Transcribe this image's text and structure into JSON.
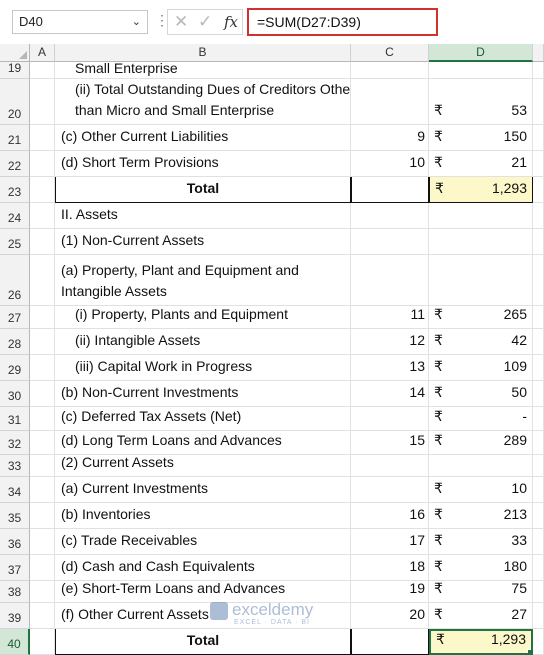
{
  "name_box": {
    "value": "D40"
  },
  "formula_bar": {
    "formula": "=SUM(D27:D39)",
    "cancel_icon": "x-icon",
    "enter_icon": "check-icon",
    "function_label": "fx"
  },
  "columns": [
    "A",
    "B",
    "C",
    "D"
  ],
  "selected_column": "D",
  "currency_symbol": "₹",
  "rows": [
    {
      "num": "19",
      "b": "Small Enterprise",
      "c": "",
      "rs": "",
      "d": ""
    },
    {
      "num": "20",
      "b": "(ii) Total Outstanding Dues of Creditors Other than Micro and Small Enterprise",
      "c": "",
      "rs": "₹",
      "d": "53"
    },
    {
      "num": "21",
      "b": "(c) Other Current Liabilities",
      "c": "9",
      "rs": "₹",
      "d": "150"
    },
    {
      "num": "22",
      "b": "(d) Short Term Provisions",
      "c": "10",
      "rs": "₹",
      "d": "21"
    },
    {
      "num": "23",
      "b": "Total",
      "c": "",
      "rs": "₹",
      "d": "1,293"
    },
    {
      "num": "24",
      "b": "II. Assets",
      "c": "",
      "rs": "",
      "d": ""
    },
    {
      "num": "25",
      "b": "(1) Non-Current Assets",
      "c": "",
      "rs": "",
      "d": ""
    },
    {
      "num": "26",
      "b": "(a) Property, Plant and Equipment and Intangible Assets",
      "c": "",
      "rs": "",
      "d": ""
    },
    {
      "num": "27",
      "b": "(i) Property, Plants and Equipment",
      "c": "11",
      "rs": "₹",
      "d": "265"
    },
    {
      "num": "28",
      "b": "(ii) Intangible Assets",
      "c": "12",
      "rs": "₹",
      "d": "42"
    },
    {
      "num": "29",
      "b": "(iii) Capital Work in Progress",
      "c": "13",
      "rs": "₹",
      "d": "109"
    },
    {
      "num": "30",
      "b": "(b) Non-Current Investments",
      "c": "14",
      "rs": "₹",
      "d": "50"
    },
    {
      "num": "31",
      "b": "(c) Deferred Tax Assets (Net)",
      "c": "",
      "rs": "₹",
      "d": "-"
    },
    {
      "num": "32",
      "b": "(d) Long Term Loans and Advances",
      "c": "15",
      "rs": "₹",
      "d": "289"
    },
    {
      "num": "33",
      "b": "(2) Current Assets",
      "c": "",
      "rs": "",
      "d": ""
    },
    {
      "num": "34",
      "b": "(a) Current Investments",
      "c": "",
      "rs": "₹",
      "d": "10"
    },
    {
      "num": "35",
      "b": "(b) Inventories",
      "c": "16",
      "rs": "₹",
      "d": "213"
    },
    {
      "num": "36",
      "b": "(c) Trade Receivables",
      "c": "17",
      "rs": "₹",
      "d": "33"
    },
    {
      "num": "37",
      "b": "(d) Cash and Cash Equivalents",
      "c": "18",
      "rs": "₹",
      "d": "180"
    },
    {
      "num": "38",
      "b": "(e) Short-Term Loans and Advances",
      "c": "19",
      "rs": "₹",
      "d": "75"
    },
    {
      "num": "39",
      "b": "(f) Other Current Assets",
      "c": "20",
      "rs": "₹",
      "d": "27"
    },
    {
      "num": "40",
      "b": "Total",
      "c": "",
      "rs": "₹",
      "d": "1,293"
    }
  ],
  "watermark": {
    "brand": "exceldemy",
    "tagline": "EXCEL · DATA · BI"
  }
}
